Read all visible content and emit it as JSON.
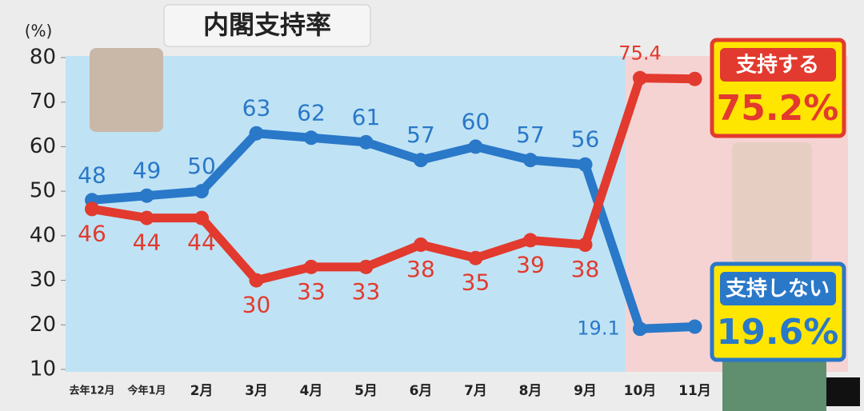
{
  "chart_data": {
    "type": "line",
    "title": "内閣支持率",
    "y_label": "(%)",
    "categories": [
      "去年12月",
      "今年1月",
      "2月",
      "3月",
      "4月",
      "5月",
      "6月",
      "7月",
      "8月",
      "9月",
      "10月",
      "11月"
    ],
    "series": [
      {
        "name": "支持しない",
        "color": "#2a78c8",
        "values": [
          48,
          49,
          50,
          63,
          62,
          61,
          57,
          60,
          57,
          56,
          19.1,
          19.6
        ],
        "value_labels": [
          "48",
          "49",
          "50",
          "63",
          "62",
          "61",
          "57",
          "60",
          "57",
          "56",
          "19.1",
          "19.6%"
        ]
      },
      {
        "name": "支持する",
        "color": "#e23a2e",
        "values": [
          46,
          44,
          44,
          30,
          33,
          33,
          38,
          35,
          39,
          38,
          75.4,
          75.2
        ],
        "value_labels": [
          "46",
          "44",
          "44",
          "30",
          "33",
          "33",
          "38",
          "35",
          "39",
          "38",
          "75.4",
          "75.2%"
        ]
      }
    ],
    "ylim": [
      10,
      80
    ],
    "yticks": [
      10,
      20,
      30,
      40,
      50,
      60,
      70,
      80
    ]
  }
}
